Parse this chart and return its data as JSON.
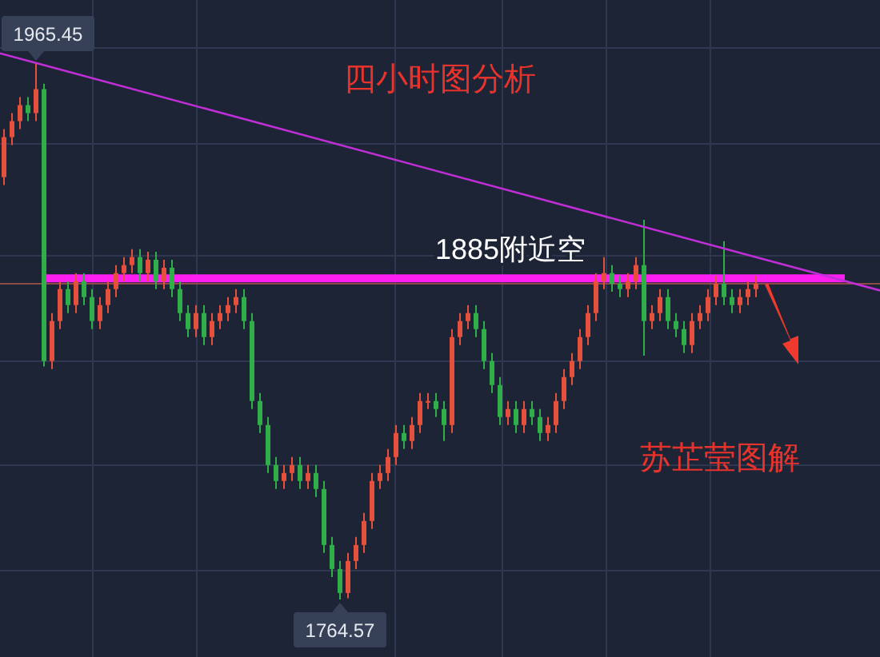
{
  "chart_data": {
    "type": "candlestick",
    "title": "四小时图分析",
    "grid": true,
    "categories": [
      null,
      null,
      null,
      null,
      null,
      null,
      null,
      null,
      null,
      null,
      null,
      null,
      null,
      null,
      null,
      null,
      null,
      null,
      null,
      null,
      null,
      null,
      null,
      null,
      null,
      null,
      null,
      null,
      null,
      null,
      null,
      null,
      null,
      null,
      null,
      null,
      null,
      null,
      null,
      null,
      null,
      null,
      null,
      null,
      null,
      null,
      null,
      null,
      null,
      null,
      null,
      null,
      null,
      null,
      null,
      null,
      null,
      null,
      null,
      null,
      null,
      null,
      null,
      null,
      null,
      null,
      null,
      null,
      null,
      null,
      null,
      null,
      null,
      null,
      null,
      null,
      null,
      null,
      null,
      null,
      null,
      null,
      null,
      null,
      null,
      null,
      null,
      null,
      null,
      null,
      null,
      null,
      null,
      null,
      null
    ],
    "ohlc": [
      [
        1923,
        1941,
        1920,
        1938
      ],
      [
        1938,
        1947,
        1935,
        1944
      ],
      [
        1944,
        1953,
        1941,
        1950
      ],
      [
        1950,
        1953,
        1944,
        1947
      ],
      [
        1947,
        1965.45,
        1944,
        1956
      ],
      [
        1956,
        1958,
        1852,
        1854
      ],
      [
        1854,
        1872,
        1851,
        1869
      ],
      [
        1869,
        1884,
        1866,
        1881
      ],
      [
        1881,
        1884,
        1872,
        1875
      ],
      [
        1875,
        1887,
        1872,
        1884
      ],
      [
        1884,
        1887,
        1875,
        1878
      ],
      [
        1878,
        1881,
        1866,
        1869
      ],
      [
        1869,
        1878,
        1866,
        1875
      ],
      [
        1875,
        1884,
        1872,
        1881
      ],
      [
        1881,
        1890,
        1878,
        1887
      ],
      [
        1887,
        1893,
        1884,
        1890
      ],
      [
        1890,
        1896,
        1887,
        1893
      ],
      [
        1893,
        1896,
        1884,
        1887
      ],
      [
        1887,
        1895,
        1884,
        1892
      ],
      [
        1892,
        1895,
        1881,
        1884
      ],
      [
        1884,
        1892,
        1881,
        1889
      ],
      [
        1889,
        1892,
        1878,
        1881
      ],
      [
        1881,
        1884,
        1869,
        1872
      ],
      [
        1872,
        1875,
        1863,
        1866
      ],
      [
        1866,
        1875,
        1863,
        1872
      ],
      [
        1872,
        1875,
        1860,
        1863
      ],
      [
        1863,
        1872,
        1860,
        1869
      ],
      [
        1869,
        1875,
        1866,
        1872
      ],
      [
        1872,
        1878,
        1869,
        1875
      ],
      [
        1875,
        1881,
        1872,
        1878
      ],
      [
        1878,
        1881,
        1866,
        1869
      ],
      [
        1869,
        1872,
        1836,
        1839
      ],
      [
        1839,
        1842,
        1827,
        1830
      ],
      [
        1830,
        1833,
        1812,
        1815
      ],
      [
        1815,
        1818,
        1806,
        1809
      ],
      [
        1809,
        1815,
        1806,
        1812
      ],
      [
        1812,
        1818,
        1809,
        1815
      ],
      [
        1815,
        1818,
        1806,
        1809
      ],
      [
        1809,
        1815,
        1806,
        1812
      ],
      [
        1812,
        1815,
        1803,
        1806
      ],
      [
        1806,
        1809,
        1782,
        1785
      ],
      [
        1785,
        1788,
        1773,
        1776
      ],
      [
        1776,
        1779,
        1764.57,
        1767
      ],
      [
        1767,
        1782,
        1765,
        1779
      ],
      [
        1779,
        1788,
        1776,
        1785
      ],
      [
        1785,
        1797,
        1782,
        1794
      ],
      [
        1794,
        1812,
        1791,
        1809
      ],
      [
        1809,
        1815,
        1806,
        1812
      ],
      [
        1812,
        1821,
        1809,
        1818
      ],
      [
        1818,
        1830,
        1815,
        1827
      ],
      [
        1827,
        1830,
        1821,
        1824
      ],
      [
        1824,
        1833,
        1821,
        1830
      ],
      [
        1830,
        1842,
        1827,
        1839
      ],
      [
        1839,
        1842,
        1836,
        1839
      ],
      [
        1839,
        1842,
        1833,
        1836
      ],
      [
        1836,
        1839,
        1824,
        1830
      ],
      [
        1830,
        1866,
        1827,
        1863
      ],
      [
        1863,
        1872,
        1860,
        1869
      ],
      [
        1869,
        1875,
        1866,
        1872
      ],
      [
        1872,
        1875,
        1863,
        1866
      ],
      [
        1866,
        1869,
        1851,
        1854
      ],
      [
        1854,
        1857,
        1842,
        1845
      ],
      [
        1845,
        1848,
        1830,
        1833
      ],
      [
        1833,
        1839,
        1830,
        1836
      ],
      [
        1836,
        1839,
        1827,
        1830
      ],
      [
        1830,
        1839,
        1827,
        1836
      ],
      [
        1836,
        1839,
        1830,
        1833
      ],
      [
        1833,
        1836,
        1824,
        1827
      ],
      [
        1827,
        1833,
        1824,
        1830
      ],
      [
        1830,
        1842,
        1827,
        1839
      ],
      [
        1839,
        1851,
        1836,
        1848
      ],
      [
        1848,
        1857,
        1845,
        1854
      ],
      [
        1854,
        1866,
        1851,
        1863
      ],
      [
        1863,
        1875,
        1860,
        1872
      ],
      [
        1872,
        1887,
        1869,
        1884
      ],
      [
        1884,
        1893,
        1881,
        1887
      ],
      [
        1887,
        1890,
        1880,
        1883
      ],
      [
        1883,
        1886,
        1878,
        1881
      ],
      [
        1881,
        1887,
        1878,
        1884
      ],
      [
        1884,
        1893,
        1881,
        1890
      ],
      [
        1890,
        1907,
        1856,
        1869
      ],
      [
        1869,
        1875,
        1866,
        1872
      ],
      [
        1872,
        1881,
        1869,
        1878
      ],
      [
        1878,
        1881,
        1866,
        1869
      ],
      [
        1869,
        1872,
        1863,
        1866
      ],
      [
        1866,
        1869,
        1857,
        1860
      ],
      [
        1860,
        1872,
        1857,
        1869
      ],
      [
        1869,
        1875,
        1866,
        1872
      ],
      [
        1872,
        1881,
        1869,
        1878
      ],
      [
        1878,
        1886,
        1875,
        1883
      ],
      [
        1883,
        1899,
        1875,
        1878
      ],
      [
        1878,
        1881,
        1872,
        1875
      ],
      [
        1875,
        1881,
        1872,
        1878
      ],
      [
        1878,
        1884,
        1875,
        1881
      ],
      [
        1881,
        1886,
        1878,
        1883
      ]
    ],
    "series": [
      {
        "type": "line",
        "color": "#c02fd6",
        "values": [
          null,
          null,
          null,
          null,
          null,
          1965,
          null,
          null,
          null,
          null,
          null,
          null,
          null,
          null,
          null,
          null,
          null,
          null,
          null,
          null,
          null,
          null,
          null,
          null,
          null,
          null,
          null,
          null,
          null,
          null,
          null,
          null,
          null,
          null,
          null,
          null,
          null,
          null,
          null,
          null,
          null,
          null,
          null,
          null,
          null,
          null,
          null,
          null,
          null,
          null,
          null,
          null,
          null,
          null,
          null,
          null,
          null,
          null,
          null,
          null,
          null,
          null,
          null,
          null,
          null,
          null,
          null,
          null,
          null,
          null,
          null,
          null,
          null,
          null,
          null,
          null,
          null,
          null,
          null,
          null,
          null,
          null,
          null,
          null,
          null,
          null,
          null,
          null,
          null,
          null,
          null,
          null,
          null,
          null,
          1893
        ]
      }
    ],
    "ref_lines": [
      {
        "axis": "y",
        "value": 1885,
        "label": "1885附近空",
        "color": "#ff1ef0"
      },
      {
        "axis": "y",
        "value": 1883,
        "color": "#8a4a46"
      }
    ],
    "annotations": [
      {
        "text": "1965.45",
        "y": 1965.45
      },
      {
        "text": "1764.57",
        "y": 1764.57
      },
      "苏芷莹图解"
    ]
  }
}
